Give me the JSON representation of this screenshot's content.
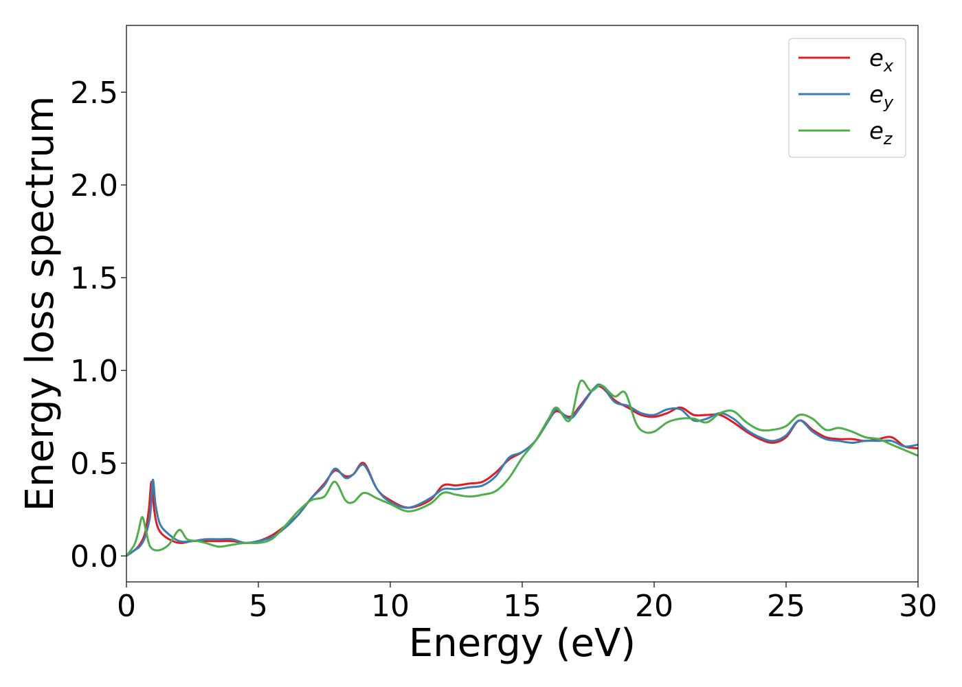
{
  "chart_data": {
    "type": "line",
    "xlabel": "Energy (eV)",
    "ylabel": "Energy loss spectrum",
    "xlim": [
      0,
      30
    ],
    "ylim": [
      -0.14,
      2.86
    ],
    "xticks": [
      0,
      5,
      10,
      15,
      20,
      25,
      30
    ],
    "xtick_labels": [
      "0",
      "5",
      "10",
      "15",
      "20",
      "25",
      "30"
    ],
    "yticks": [
      0.0,
      0.5,
      1.0,
      1.5,
      2.0,
      2.5
    ],
    "ytick_labels": [
      "0.0",
      "0.5",
      "1.0",
      "1.5",
      "2.0",
      "2.5"
    ],
    "grid": false,
    "legend_position": "top-right",
    "series": [
      {
        "name": "e_x",
        "label_base": "e",
        "label_sub": "x",
        "color": "#e41a1c",
        "x": [
          0,
          0.3,
          0.5,
          0.7,
          0.85,
          0.95,
          1.05,
          1.2,
          1.5,
          2.0,
          2.5,
          3.0,
          3.5,
          4.0,
          4.5,
          5.0,
          5.5,
          6.0,
          6.5,
          7.0,
          7.5,
          7.9,
          8.3,
          8.6,
          9.0,
          9.5,
          10.0,
          10.7,
          11.5,
          12.0,
          12.5,
          13.0,
          13.5,
          14.0,
          14.5,
          15.0,
          15.5,
          16.0,
          16.3,
          16.8,
          17.2,
          17.7,
          18.0,
          18.5,
          19.0,
          19.5,
          20.0,
          20.5,
          21.0,
          21.5,
          22.0,
          22.5,
          23.0,
          23.5,
          24.0,
          24.5,
          25.0,
          25.5,
          26.0,
          26.5,
          27.0,
          27.5,
          28.0,
          28.5,
          29.0,
          29.5,
          30.0
        ],
        "y": [
          0.0,
          0.03,
          0.06,
          0.12,
          0.25,
          0.4,
          0.25,
          0.15,
          0.1,
          0.07,
          0.08,
          0.08,
          0.08,
          0.08,
          0.07,
          0.08,
          0.11,
          0.16,
          0.22,
          0.31,
          0.39,
          0.46,
          0.43,
          0.44,
          0.5,
          0.36,
          0.3,
          0.26,
          0.3,
          0.38,
          0.38,
          0.39,
          0.4,
          0.45,
          0.52,
          0.56,
          0.62,
          0.73,
          0.78,
          0.75,
          0.81,
          0.9,
          0.91,
          0.84,
          0.8,
          0.76,
          0.75,
          0.77,
          0.8,
          0.76,
          0.76,
          0.76,
          0.72,
          0.67,
          0.63,
          0.61,
          0.64,
          0.73,
          0.68,
          0.64,
          0.63,
          0.63,
          0.62,
          0.63,
          0.64,
          0.59,
          0.58
        ]
      },
      {
        "name": "e_y",
        "label_base": "e",
        "label_sub": "y",
        "color": "#377eb8",
        "x": [
          0,
          0.3,
          0.5,
          0.7,
          0.9,
          1.0,
          1.1,
          1.25,
          1.5,
          2.0,
          2.5,
          3.0,
          3.5,
          4.0,
          4.5,
          5.0,
          5.5,
          6.0,
          6.5,
          7.0,
          7.5,
          7.9,
          8.3,
          8.6,
          9.0,
          9.5,
          10.0,
          10.7,
          11.5,
          12.0,
          12.5,
          13.0,
          13.5,
          14.0,
          14.5,
          15.0,
          15.5,
          16.0,
          16.3,
          16.8,
          17.2,
          17.7,
          18.0,
          18.5,
          19.0,
          19.5,
          20.0,
          20.5,
          21.0,
          21.5,
          22.0,
          22.5,
          23.0,
          23.5,
          24.0,
          24.5,
          25.0,
          25.5,
          26.0,
          26.5,
          27.0,
          27.5,
          28.0,
          28.5,
          29.0,
          29.5,
          30.0
        ],
        "y": [
          0.0,
          0.03,
          0.05,
          0.1,
          0.22,
          0.41,
          0.28,
          0.18,
          0.13,
          0.08,
          0.08,
          0.09,
          0.09,
          0.09,
          0.07,
          0.08,
          0.1,
          0.15,
          0.22,
          0.31,
          0.38,
          0.47,
          0.42,
          0.44,
          0.49,
          0.36,
          0.29,
          0.26,
          0.31,
          0.36,
          0.36,
          0.37,
          0.38,
          0.43,
          0.53,
          0.56,
          0.62,
          0.73,
          0.79,
          0.74,
          0.8,
          0.9,
          0.92,
          0.83,
          0.81,
          0.77,
          0.76,
          0.79,
          0.79,
          0.73,
          0.74,
          0.77,
          0.74,
          0.68,
          0.64,
          0.62,
          0.65,
          0.73,
          0.67,
          0.63,
          0.62,
          0.61,
          0.62,
          0.62,
          0.62,
          0.59,
          0.6
        ]
      },
      {
        "name": "e_z",
        "label_base": "e",
        "label_sub": "z",
        "color": "#4daf4a",
        "x": [
          0,
          0.3,
          0.45,
          0.6,
          0.75,
          0.9,
          1.2,
          1.6,
          2.0,
          2.3,
          2.7,
          3.0,
          3.5,
          4.0,
          4.5,
          5.0,
          5.5,
          6.0,
          6.5,
          7.0,
          7.5,
          7.9,
          8.3,
          8.6,
          9.0,
          9.5,
          10.0,
          10.7,
          11.5,
          12.0,
          12.5,
          13.0,
          13.5,
          14.0,
          14.5,
          15.0,
          15.5,
          16.0,
          16.3,
          16.8,
          17.2,
          17.6,
          18.0,
          18.5,
          18.9,
          19.3,
          19.6,
          20.0,
          20.5,
          21.0,
          21.5,
          22.0,
          22.5,
          23.0,
          23.5,
          24.0,
          24.5,
          25.0,
          25.5,
          26.0,
          26.5,
          27.0,
          27.5,
          28.0,
          28.5,
          29.0,
          29.5,
          30.0
        ],
        "y": [
          0.0,
          0.06,
          0.13,
          0.21,
          0.13,
          0.05,
          0.03,
          0.06,
          0.14,
          0.09,
          0.08,
          0.07,
          0.05,
          0.06,
          0.07,
          0.07,
          0.09,
          0.16,
          0.24,
          0.3,
          0.32,
          0.4,
          0.3,
          0.29,
          0.34,
          0.31,
          0.28,
          0.24,
          0.28,
          0.34,
          0.33,
          0.32,
          0.33,
          0.35,
          0.42,
          0.53,
          0.62,
          0.74,
          0.8,
          0.73,
          0.94,
          0.89,
          0.92,
          0.86,
          0.88,
          0.72,
          0.67,
          0.67,
          0.72,
          0.74,
          0.74,
          0.72,
          0.77,
          0.78,
          0.72,
          0.68,
          0.68,
          0.7,
          0.76,
          0.74,
          0.68,
          0.69,
          0.67,
          0.64,
          0.63,
          0.6,
          0.57,
          0.54
        ]
      }
    ]
  }
}
